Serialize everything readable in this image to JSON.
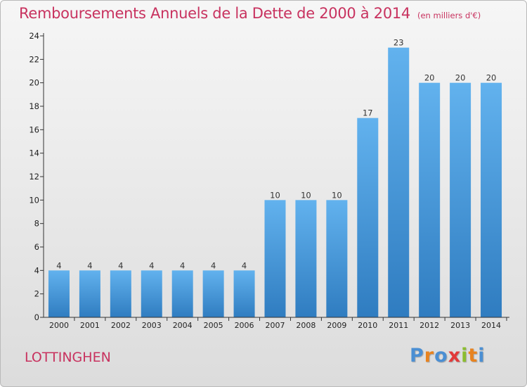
{
  "title": "Remboursements Annuels de la Dette de 2000 à 2014",
  "unit": "(en milliers d'€)",
  "city": "LOTTINGHEN",
  "logo": {
    "text": "Proxiti",
    "colors": [
      "#4b8fd3",
      "#e8831f",
      "#4b8fd3",
      "#e23a3a",
      "#8bbd2f",
      "#e8831f",
      "#4b8fd3"
    ]
  },
  "colors": {
    "bar_top": "#62b2ee",
    "bar_bottom": "#2f7cc0",
    "title": "#c8325f",
    "axis": "#333333"
  },
  "chart_data": {
    "type": "bar",
    "title": "Remboursements Annuels de la Dette de 2000 à 2014",
    "xlabel": "",
    "ylabel": "",
    "categories": [
      "2000",
      "2001",
      "2002",
      "2003",
      "2004",
      "2005",
      "2006",
      "2007",
      "2008",
      "2009",
      "2010",
      "2011",
      "2012",
      "2013",
      "2014"
    ],
    "values": [
      4,
      4,
      4,
      4,
      4,
      4,
      4,
      10,
      10,
      10,
      17,
      23,
      20,
      20,
      20
    ],
    "ylim": [
      0,
      24
    ],
    "yticks": [
      0,
      2,
      4,
      6,
      8,
      10,
      12,
      14,
      16,
      18,
      20,
      22,
      24
    ],
    "data_labels": true,
    "grid": false
  }
}
